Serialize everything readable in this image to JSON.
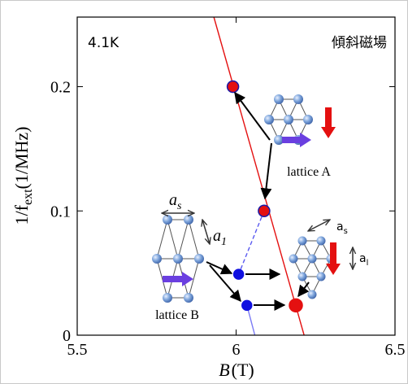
{
  "chart_data": {
    "type": "scatter",
    "xlabel": {
      "main": "B",
      "unit": "(T)"
    },
    "ylabel": {
      "main": "1/f",
      "sub": "ext",
      "unit": "(1/MHz)"
    },
    "xlim": [
      5.5,
      6.5
    ],
    "xticks": [
      5.5,
      6,
      6.5
    ],
    "ylim": [
      0,
      0.256
    ],
    "yticks": [
      0,
      0.1,
      0.2
    ],
    "series": [
      {
        "kind": "line",
        "style": "solid",
        "color": "#e41010",
        "x": [
          5.93,
          6.214
        ],
        "y": [
          0.256,
          0
        ]
      },
      {
        "kind": "line",
        "style": "dashed",
        "color": "#5a5af0",
        "x": [
          6.088,
          6.008
        ],
        "y": [
          0.1,
          0.049
        ]
      },
      {
        "kind": "line",
        "style": "solid",
        "color": "#7a7af5",
        "x": [
          6.034,
          6.059
        ],
        "y": [
          0.024,
          0
        ]
      },
      {
        "kind": "points",
        "color": "#e41010",
        "edgecolor": "#1a1aa8",
        "size": 7,
        "x": [
          5.99,
          6.088
        ],
        "y": [
          0.2,
          0.1
        ]
      },
      {
        "kind": "points",
        "color": "#1010e0",
        "edgecolor": "#1010e0",
        "size": 6,
        "x": [
          6.008,
          6.034
        ],
        "y": [
          0.049,
          0.024
        ]
      },
      {
        "kind": "points",
        "color": "#e41010",
        "edgecolor": "#e41010",
        "size": 8,
        "x": [
          6.188
        ],
        "y": [
          0.024
        ]
      }
    ],
    "annotations": [
      "4.1K",
      "傾斜磁場",
      "lattice A",
      "lattice B"
    ],
    "lattice_labels": [
      {
        "main": "a",
        "sub": "s"
      },
      {
        "main": "a",
        "sub": "1"
      },
      {
        "main": "a",
        "sub": "s"
      },
      {
        "main": "a",
        "sub": "l"
      }
    ]
  }
}
